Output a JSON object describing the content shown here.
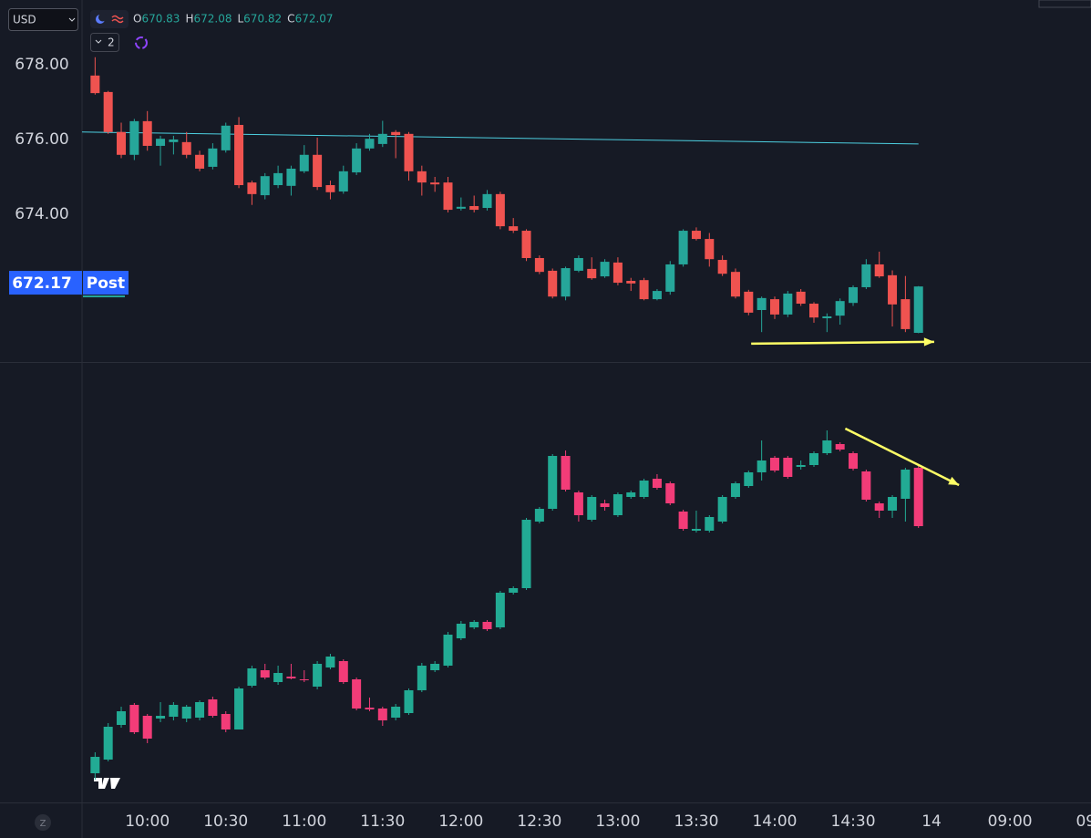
{
  "toolbar": {
    "currency": "USD",
    "interval_count": 2,
    "ohlc": [
      {
        "label": "O",
        "value": 670.83
      },
      {
        "label": "H",
        "value": 672.08
      },
      {
        "label": "L",
        "value": 670.82
      },
      {
        "label": "C",
        "value": 672.07
      }
    ]
  },
  "footer": {
    "zoom_button": "Z"
  },
  "chart_data": [
    {
      "type": "candlestick",
      "x": [
        580,
        585,
        590,
        595,
        600,
        605,
        610,
        615,
        620,
        625,
        630,
        635,
        640,
        645,
        650,
        655,
        660,
        665,
        670,
        675,
        680,
        685,
        690,
        695,
        700,
        705,
        710,
        715,
        720,
        725,
        730,
        735,
        740,
        745,
        750,
        755,
        760,
        765,
        770,
        775,
        780,
        785,
        790,
        795,
        800,
        805,
        810,
        815,
        820,
        825,
        830,
        835,
        840,
        845,
        850,
        855,
        860,
        865,
        870,
        875,
        880,
        885,
        890,
        895
      ],
      "open": [
        677.71,
        677.27,
        676.2,
        675.59,
        676.49,
        675.83,
        675.93,
        675.93,
        675.59,
        675.27,
        675.71,
        676.39,
        674.85,
        674.51,
        674.78,
        674.76,
        675.15,
        675.59,
        674.78,
        674.61,
        675.12,
        675.76,
        675.88,
        676.2,
        676.15,
        675.15,
        674.85,
        674.85,
        674.15,
        674.22,
        674.17,
        674.54,
        673.68,
        673.56,
        672.83,
        672.49,
        671.8,
        672.49,
        672.54,
        672.34,
        672.71,
        672.22,
        672.24,
        671.73,
        671.93,
        672.66,
        673.56,
        673.34,
        672.78,
        672.46,
        671.93,
        671.44,
        671.73,
        671.32,
        671.93,
        671.61,
        671.22,
        671.29,
        671.63,
        672.05,
        672.66,
        672.37,
        671.73,
        670.83
      ],
      "high": [
        678.2,
        677.3,
        676.45,
        676.55,
        676.76,
        676.1,
        676.1,
        676.2,
        675.7,
        675.9,
        676.45,
        676.6,
        674.9,
        675.1,
        675.3,
        675.3,
        675.85,
        676.05,
        674.9,
        675.3,
        675.9,
        676.15,
        676.5,
        676.25,
        676.2,
        675.3,
        675.0,
        675.0,
        674.45,
        674.5,
        674.65,
        674.6,
        673.9,
        673.6,
        672.9,
        672.55,
        672.6,
        672.9,
        672.85,
        672.8,
        672.85,
        672.3,
        672.3,
        672.0,
        672.75,
        673.6,
        673.65,
        673.5,
        672.9,
        672.55,
        671.98,
        671.8,
        671.8,
        671.95,
        672.0,
        671.65,
        671.35,
        671.75,
        672.1,
        672.8,
        673.0,
        672.5,
        672.35,
        672.08
      ],
      "low": [
        677.2,
        676.15,
        675.5,
        675.45,
        675.7,
        675.3,
        675.6,
        675.5,
        675.15,
        675.2,
        675.65,
        674.7,
        674.25,
        674.4,
        674.7,
        674.5,
        675.1,
        674.65,
        674.4,
        674.55,
        675.05,
        675.7,
        675.8,
        675.5,
        674.9,
        674.5,
        674.6,
        674.05,
        674.1,
        674.05,
        674.1,
        673.6,
        673.5,
        672.75,
        672.4,
        671.75,
        671.7,
        672.45,
        672.25,
        672.3,
        672.1,
        671.95,
        671.7,
        671.7,
        671.85,
        672.6,
        673.3,
        672.6,
        672.35,
        671.75,
        671.3,
        670.85,
        671.2,
        671.25,
        671.55,
        671.1,
        670.85,
        671.05,
        671.55,
        672.0,
        672.3,
        671.0,
        670.85,
        670.82
      ],
      "close": [
        677.24,
        676.2,
        675.59,
        676.49,
        675.83,
        676.02,
        676.0,
        675.59,
        675.22,
        675.76,
        676.37,
        674.78,
        674.54,
        675.02,
        675.1,
        675.22,
        675.59,
        674.73,
        674.59,
        675.15,
        675.76,
        676.02,
        676.15,
        676.12,
        675.15,
        674.85,
        674.8,
        674.12,
        674.2,
        674.12,
        674.54,
        673.68,
        673.56,
        672.83,
        672.46,
        671.8,
        672.56,
        672.83,
        672.29,
        672.73,
        672.17,
        672.15,
        671.73,
        671.95,
        672.66,
        673.56,
        673.34,
        672.8,
        672.41,
        671.8,
        671.37,
        671.76,
        671.32,
        671.88,
        671.61,
        671.24,
        671.27,
        671.68,
        672.05,
        672.66,
        672.34,
        671.59,
        670.93,
        672.07
      ],
      "up_color": "#26a69a",
      "down_color": "#ef5350",
      "xlim": [
        575,
        961
      ],
      "ylim": [
        670.05,
        679.73
      ],
      "yticks": [
        {
          "value": 678,
          "label": "678.00"
        },
        {
          "value": 676,
          "label": "676.00"
        },
        {
          "value": 674,
          "label": "674.00"
        }
      ],
      "price_label": {
        "value": 672.17,
        "session": "Post",
        "color": "#2962ff"
      },
      "lines": [
        {
          "x": [
            575,
            895
          ],
          "y": [
            676.2,
            675.88
          ],
          "color": "#4dd0e1"
        }
      ],
      "arrows": [
        {
          "x": [
            831,
            901
          ],
          "y": [
            670.54,
            670.59
          ],
          "color": "#ffff66"
        }
      ]
    },
    {
      "type": "candlestick",
      "x": [
        580,
        585,
        590,
        595,
        600,
        605,
        610,
        615,
        620,
        625,
        630,
        635,
        640,
        645,
        650,
        655,
        660,
        665,
        670,
        675,
        680,
        685,
        690,
        695,
        700,
        705,
        710,
        715,
        720,
        725,
        730,
        735,
        740,
        745,
        750,
        755,
        760,
        765,
        770,
        775,
        780,
        785,
        790,
        795,
        800,
        805,
        810,
        815,
        820,
        825,
        830,
        835,
        840,
        845,
        850,
        855,
        860,
        865,
        870,
        875,
        880,
        885,
        890,
        895
      ],
      "open": [
        6.4,
        9.4,
        17,
        21.4,
        19,
        18.4,
        18.8,
        18.4,
        18.6,
        22.6,
        19.4,
        16,
        25.6,
        29,
        26.4,
        27.6,
        27,
        25.4,
        29.6,
        31,
        27,
        20.8,
        20.6,
        18.6,
        19.6,
        24.6,
        29,
        30,
        36,
        38.4,
        39.6,
        38.4,
        46,
        47,
        61.6,
        64.4,
        76,
        68,
        62,
        65.6,
        63,
        67,
        67,
        71,
        70,
        63.8,
        59.6,
        59.6,
        61.6,
        67,
        69.4,
        72.4,
        75.6,
        75.6,
        73.6,
        74,
        76.6,
        78.6,
        76.6,
        72.6,
        65.6,
        64,
        66.6,
        73.4
      ],
      "high": [
        11,
        17.4,
        21,
        21.8,
        19.4,
        22,
        22,
        21.4,
        22.4,
        23.2,
        20,
        25.4,
        30,
        30.4,
        30,
        30.4,
        29,
        31,
        32.6,
        31.4,
        27.4,
        23,
        21,
        21.6,
        25,
        30.6,
        31,
        37.4,
        39.8,
        40,
        40,
        46.4,
        47.4,
        62.4,
        64.8,
        76.4,
        77.2,
        68.4,
        67.4,
        66.4,
        68,
        68.4,
        71,
        72,
        70.4,
        64.2,
        64,
        63,
        67.4,
        70.4,
        72.8,
        79.4,
        76,
        76,
        75,
        77,
        81.6,
        79,
        77,
        73,
        66,
        67.4,
        73.4,
        74
      ],
      "low": [
        5,
        9,
        16.4,
        15,
        13,
        17.6,
        18,
        17.6,
        18,
        18.6,
        15.4,
        16,
        25.2,
        27,
        25.8,
        27,
        26.4,
        24.8,
        29.2,
        26,
        20.2,
        20,
        16.8,
        18,
        19.2,
        24.2,
        28.6,
        29.6,
        35.6,
        38,
        37.6,
        38,
        45.6,
        46.6,
        61.2,
        64,
        68.2,
        61.6,
        61.6,
        64,
        62.6,
        66.6,
        66.6,
        68.6,
        65.2,
        59.6,
        59.2,
        59.2,
        61.2,
        66.6,
        69,
        70.6,
        72.4,
        71,
        73,
        73.6,
        76.2,
        77,
        72.8,
        66,
        62.4,
        62.4,
        61.6,
        60.2
      ],
      "close": [
        10,
        16.6,
        20,
        15.4,
        14,
        19,
        21.4,
        21,
        22,
        19,
        16,
        25,
        29.4,
        27.4,
        28.4,
        27.2,
        26.8,
        30.4,
        32,
        26.4,
        20.6,
        20.4,
        18,
        21,
        24.6,
        30,
        30.4,
        36.8,
        39.2,
        39.6,
        38,
        46,
        47,
        62,
        64.4,
        76,
        68.6,
        63,
        67,
        64.8,
        67.6,
        68,
        70.6,
        69,
        65.6,
        60,
        60,
        62.6,
        67,
        70,
        72.4,
        75,
        72.8,
        71.4,
        74,
        76.6,
        79.4,
        77.4,
        73.2,
        66.4,
        64,
        67,
        73,
        60.6
      ],
      "up_color": "#22ab94",
      "down_color": "#f23c78",
      "xlim": [
        575,
        961
      ],
      "ylim": [
        0,
        96.4
      ],
      "xticks": [
        {
          "value": 600,
          "label": "10:00"
        },
        {
          "value": 630,
          "label": "10:30"
        },
        {
          "value": 660,
          "label": "11:00"
        },
        {
          "value": 690,
          "label": "11:30"
        },
        {
          "value": 720,
          "label": "12:00"
        },
        {
          "value": 750,
          "label": "12:30"
        },
        {
          "value": 780,
          "label": "13:00"
        },
        {
          "value": 810,
          "label": "13:30"
        },
        {
          "value": 840,
          "label": "14:00"
        },
        {
          "value": 870,
          "label": "14:30"
        },
        {
          "value": 900,
          "label": "14"
        },
        {
          "value": 930,
          "label": "09:00"
        },
        {
          "value": 960,
          "label": "09:"
        }
      ],
      "arrows": [
        {
          "x": [
            867,
            910.5
          ],
          "y": [
            82,
            69.6
          ],
          "color": "#ffff66"
        }
      ]
    }
  ]
}
